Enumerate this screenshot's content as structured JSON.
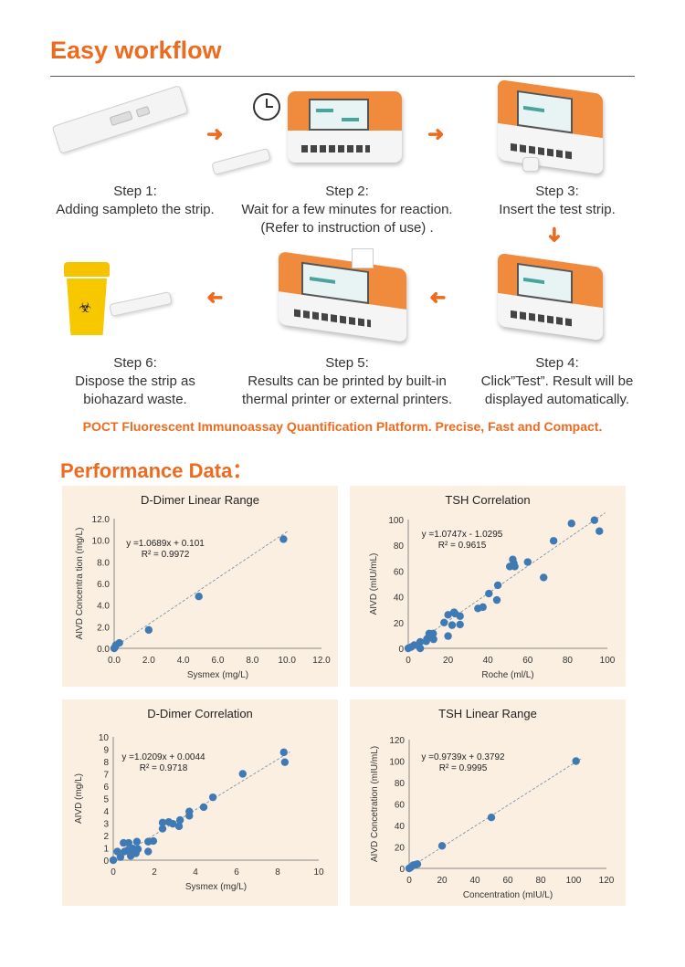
{
  "header": {
    "title": "Easy workflow"
  },
  "steps": [
    {
      "label": "Step 1:",
      "text": [
        "Adding sampleto the strip."
      ]
    },
    {
      "label": "Step 2:",
      "text": [
        "Wait for a few minutes for reaction.",
        "(Refer to instruction of use) ."
      ]
    },
    {
      "label": "Step 3:",
      "text": [
        "Insert the test strip."
      ]
    },
    {
      "label": "Step 4:",
      "text": [
        "Click”Test”. Result will be",
        "displayed automatically."
      ]
    },
    {
      "label": "Step 5:",
      "text": [
        "Results can be printed by built-in",
        "thermal printer or external printers."
      ]
    },
    {
      "label": "Step 6:",
      "text": [
        "Dispose the strip as",
        "biohazard waste."
      ]
    }
  ],
  "icons": [
    "test-strip",
    "clock",
    "analyzer-device",
    "arrow-right",
    "arrow-down",
    "arrow-left",
    "biohazard-bin",
    "printer"
  ],
  "tagline": "POCT Fluorescent Immunoassay Quantification Platform. Precise, Fast and Compact.",
  "section_title": "Performance Data：",
  "colors": {
    "accent": "#ee6a1e",
    "chart_bg": "#fbefe1",
    "marker": "#3f7ab5",
    "trendline": "#6b8aa8"
  },
  "chart_data": [
    {
      "type": "scatter",
      "title": "D-Dimer Linear Range",
      "xlabel": "Sysmex (mg/L)",
      "ylabel": "AIVD Concentra tion (mg/L)",
      "xlim": [
        0,
        12
      ],
      "ylim": [
        0,
        12
      ],
      "xticks": [
        "0.0",
        "2.0",
        "4.0",
        "6.0",
        "8.0",
        "10.0",
        "12.0"
      ],
      "yticks": [
        "0.0",
        "2.0",
        "4.0",
        "6.0",
        "8.0",
        "10.0",
        "12.0"
      ],
      "equation": "y =1.0689x + 0.101",
      "r2": "R² = 0.9972",
      "trend": {
        "slope": 1.0689,
        "intercept": 0.101
      },
      "grid": false,
      "points": [
        [
          0,
          0
        ],
        [
          0.05,
          0.1
        ],
        [
          0.1,
          0.3
        ],
        [
          0.3,
          0.5
        ],
        [
          2.0,
          1.7
        ],
        [
          4.9,
          4.8
        ],
        [
          9.8,
          10.1
        ]
      ]
    },
    {
      "type": "scatter",
      "title": "TSH Correlation",
      "xlabel": "Roche (ml/L)",
      "ylabel": "AIVD  (mIU/mL)",
      "xlim": [
        0,
        100
      ],
      "ylim": [
        0,
        100
      ],
      "xticks": [
        "0",
        "20",
        "40",
        "60",
        "80",
        "100"
      ],
      "yticks": [
        "0",
        "20",
        "40",
        "60",
        "80",
        "100"
      ],
      "equation": "y =1.0747x - 1.0295",
      "r2": "R² = 0.9615",
      "trend": {
        "slope": 1.0747,
        "intercept": -1.0295
      },
      "grid": false,
      "points": [
        [
          0,
          0
        ],
        [
          1.5,
          1
        ],
        [
          3,
          2.5
        ],
        [
          6,
          5
        ],
        [
          6,
          0
        ],
        [
          9,
          5.5
        ],
        [
          9.5,
          7.5
        ],
        [
          10.5,
          11.5
        ],
        [
          12.5,
          11.5
        ],
        [
          12.7,
          7
        ],
        [
          11,
          9.5
        ],
        [
          18,
          20
        ],
        [
          20,
          26
        ],
        [
          20,
          9.5
        ],
        [
          22,
          18
        ],
        [
          23,
          28
        ],
        [
          23.5,
          27
        ],
        [
          26,
          25
        ],
        [
          26,
          18.5
        ],
        [
          35,
          31
        ],
        [
          37.5,
          32
        ],
        [
          40.5,
          42.5
        ],
        [
          45,
          49
        ],
        [
          44.5,
          37.5
        ],
        [
          51,
          63.5
        ],
        [
          52.5,
          69
        ],
        [
          53,
          66
        ],
        [
          53.5,
          63.5
        ],
        [
          60,
          67
        ],
        [
          68,
          55
        ],
        [
          73,
          83.5
        ],
        [
          82,
          97
        ],
        [
          93.5,
          99.5
        ],
        [
          96,
          91
        ]
      ]
    },
    {
      "type": "scatter",
      "title": "D-Dimer Correlation",
      "xlabel": "Sysmex (mg/L)",
      "ylabel": "AIVD (mg/L)",
      "xlim": [
        0,
        10
      ],
      "ylim": [
        0,
        10
      ],
      "xticks": [
        "0",
        "2",
        "4",
        "6",
        "8",
        "10"
      ],
      "yticks": [
        "0",
        "1",
        "2",
        "3",
        "4",
        "5",
        "6",
        "7",
        "8",
        "9",
        "10"
      ],
      "equation": "y =1.0209x + 0.0044",
      "r2": "R² = 0.9718",
      "trend": {
        "slope": 1.0209,
        "intercept": 0.0044
      },
      "grid": false,
      "points": [
        [
          0,
          0
        ],
        [
          0.2,
          0.7
        ],
        [
          0.35,
          0.25
        ],
        [
          0.5,
          1.4
        ],
        [
          0.75,
          1.4
        ],
        [
          0.55,
          0.7
        ],
        [
          0.7,
          0.8
        ],
        [
          0.85,
          0.35
        ],
        [
          1.0,
          0.65
        ],
        [
          0.95,
          0.95
        ],
        [
          1.1,
          0.55
        ],
        [
          1.2,
          0.9
        ],
        [
          1.15,
          1.5
        ],
        [
          1.7,
          0.7
        ],
        [
          1.7,
          1.5
        ],
        [
          1.95,
          1.55
        ],
        [
          2.4,
          2.55
        ],
        [
          2.4,
          3.05
        ],
        [
          2.7,
          3.1
        ],
        [
          2.9,
          2.95
        ],
        [
          3.2,
          2.75
        ],
        [
          3.25,
          3.25
        ],
        [
          3.7,
          3.6
        ],
        [
          3.7,
          3.95
        ],
        [
          4.4,
          4.3
        ],
        [
          4.85,
          5.1
        ],
        [
          6.3,
          7.0
        ],
        [
          8.3,
          8.75
        ],
        [
          8.35,
          7.95
        ]
      ]
    },
    {
      "type": "scatter",
      "title": "TSH Linear Range",
      "xlabel": "Concentration (mIU/L)",
      "ylabel": "AIVD Concetration (mIU/mL)",
      "xlim": [
        0,
        120
      ],
      "ylim": [
        0,
        120
      ],
      "xticks": [
        "0",
        "20",
        "40",
        "60",
        "80",
        "100",
        "120"
      ],
      "yticks": [
        "0",
        "20",
        "40",
        "60",
        "80",
        "100",
        "120"
      ],
      "equation": "y =0.9739x + 0.3792",
      "r2": "R² = 0.9995",
      "trend": {
        "slope": 0.9739,
        "intercept": 0.3792
      },
      "grid": false,
      "points": [
        [
          0,
          0
        ],
        [
          1,
          1
        ],
        [
          2.5,
          3
        ],
        [
          4,
          3.5
        ],
        [
          5,
          4
        ],
        [
          20,
          21
        ],
        [
          50,
          47.5
        ],
        [
          101.5,
          100
        ]
      ]
    }
  ]
}
